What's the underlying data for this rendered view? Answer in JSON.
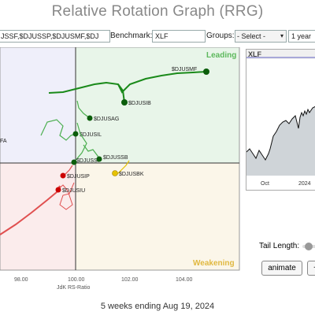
{
  "title": "Relative Rotation Graph (RRG)",
  "toolbar": {
    "symbols_value": "JSSF,$DJUSSP,$DJUSMF,$DJ",
    "benchmark_label": "Benchmark:",
    "benchmark_value": "XLF",
    "groups_label": "Groups:",
    "groups_value": "- Select -",
    "period_value": "1 year"
  },
  "quadrants": {
    "leading": "Leading",
    "weakening": "Weakening",
    "colors": {
      "leading": "#e8f5e9",
      "weakening": "#fbf6e9",
      "lagging": "#fbecec",
      "improving": "#efeffa"
    }
  },
  "axes": {
    "xlabel": "JdK RS-Ratio",
    "xticks": [
      "98.00",
      "100.00",
      "102.00",
      "104.00"
    ],
    "center_x": 100,
    "center_y": 100
  },
  "series": [
    {
      "name": "$DJUSMF",
      "color": "#1a8a1a",
      "head_color": "#0b5d0b"
    },
    {
      "name": "$DJUSIB",
      "color": "#1a8a1a",
      "head_color": "#0b5d0b"
    },
    {
      "name": "$DJUSAG",
      "color": "#4caf50",
      "head_color": "#0b5d0b"
    },
    {
      "name": "$DJUSIL",
      "color": "#4caf50",
      "head_color": "#0b5d0b"
    },
    {
      "name": "$DJUSSP",
      "color": "#4caf50",
      "head_color": "#0b5d0b"
    },
    {
      "name": "$DJUSSB",
      "color": "#4caf50",
      "head_color": "#0b5d0b"
    },
    {
      "name": "$DJUSBK",
      "color": "#e6c200",
      "head_color": "#e6c200"
    },
    {
      "name": "$DJUSIP",
      "color": "#e05050",
      "head_color": "#cc0000"
    },
    {
      "name": "$DJUSIU",
      "color": "#e05050",
      "head_color": "#cc0000"
    }
  ],
  "left_labels": [
    "FA"
  ],
  "mini_chart": {
    "symbol": "XLF",
    "xticks": [
      "Oct",
      "2024"
    ]
  },
  "controls": {
    "tail_length_label": "Tail Length:",
    "animate_label": "animate",
    "extra_label": "+"
  },
  "footer": "5 weeks ending Aug 19, 2024"
}
